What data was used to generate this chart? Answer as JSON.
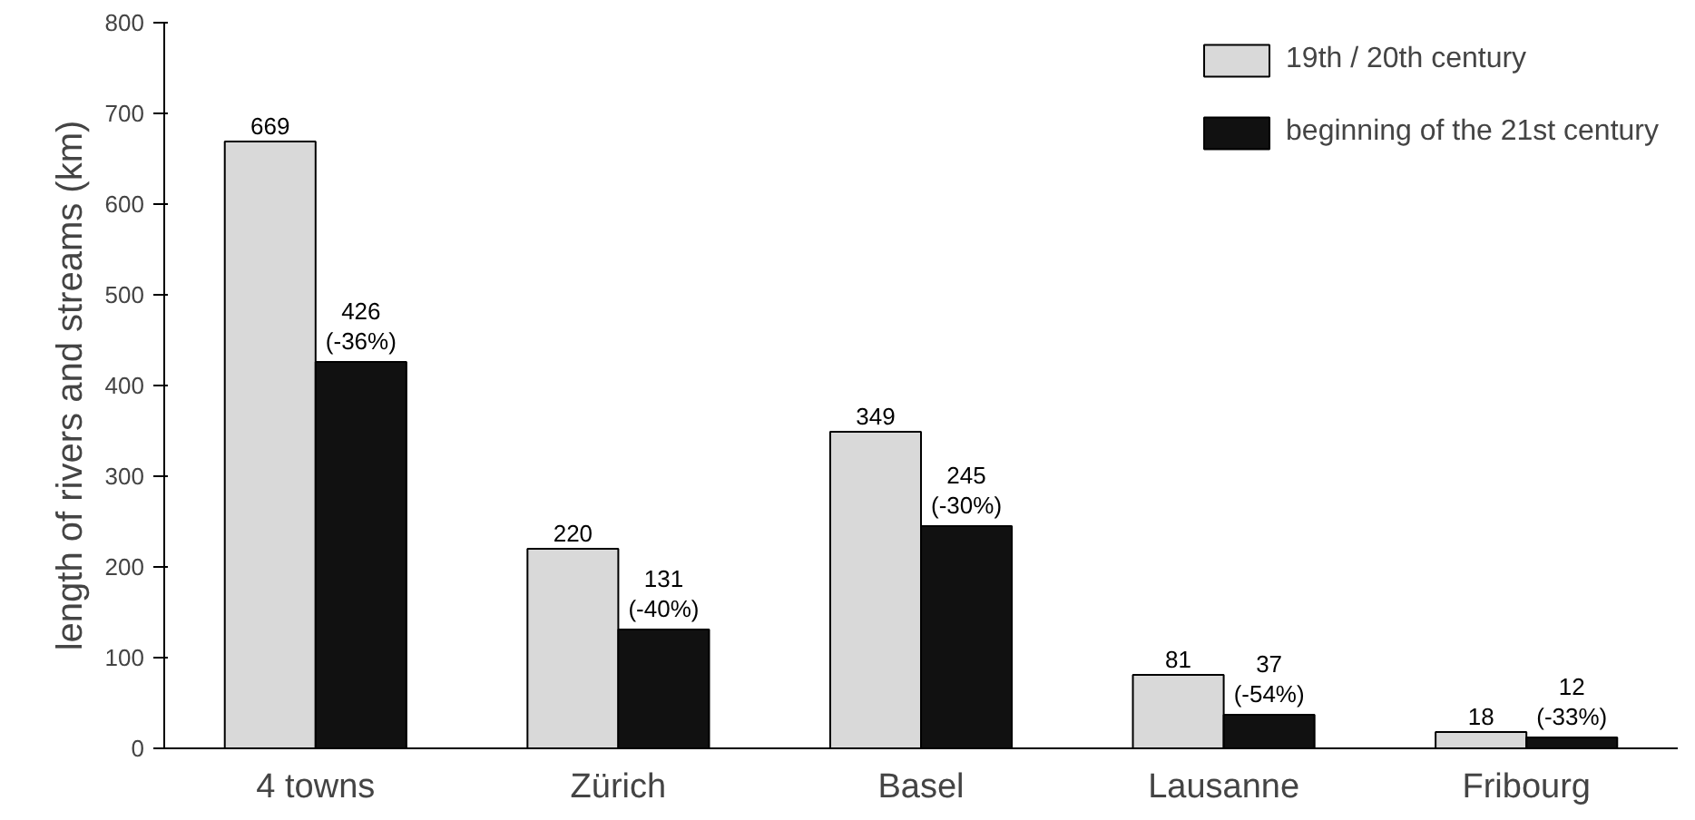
{
  "chart_data": {
    "type": "bar",
    "ylabel": "length of rivers and streams (km)",
    "categories": [
      "4 towns",
      "Zürich",
      "Basel",
      "Lausanne",
      "Fribourg"
    ],
    "series": [
      {
        "name": "19th / 20th century",
        "color": "#d9d9d9",
        "values": [
          669,
          220,
          349,
          81,
          18
        ],
        "value_labels": [
          "669",
          "220",
          "349",
          "81",
          "18"
        ]
      },
      {
        "name": "beginning of the 21st century",
        "color": "#111111",
        "values": [
          426,
          131,
          245,
          37,
          12
        ],
        "value_labels": [
          "426\n(-36%)",
          "131\n(-40%)",
          "245\n(-30%)",
          "37\n(-54%)",
          "12\n(-33%)"
        ]
      }
    ],
    "ylim": [
      0,
      800
    ],
    "yticks": [
      0,
      100,
      200,
      300,
      400,
      500,
      600,
      700,
      800
    ],
    "grid": false,
    "legend": "top right"
  }
}
